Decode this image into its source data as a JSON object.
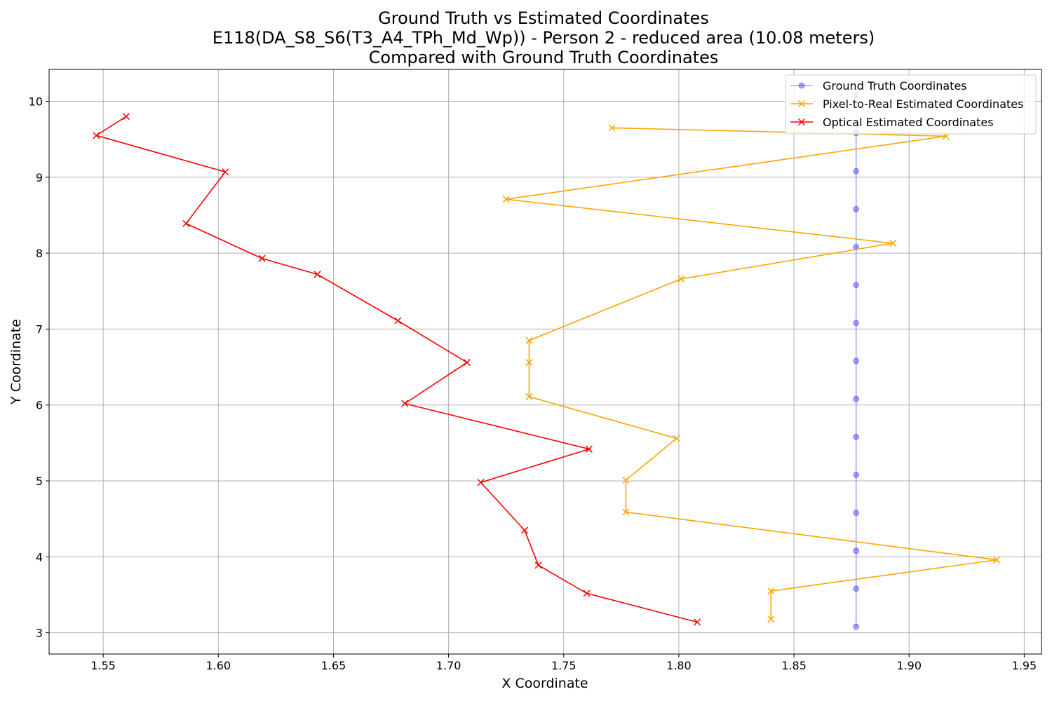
{
  "chart_data": {
    "type": "line",
    "title_lines": [
      "Ground Truth vs Estimated Coordinates",
      "E118(DA_S8_S6(T3_A4_TPh_Md_Wp)) - Person 2 - reduced area (10.08 meters)",
      "Compared with Ground Truth Coordinates"
    ],
    "xlabel": "X Coordinate",
    "ylabel": "Y Coordinate",
    "xlim": [
      1.5265,
      1.9575
    ],
    "ylim": [
      2.72,
      10.42
    ],
    "xticks": [
      1.55,
      1.6,
      1.65,
      1.7,
      1.75,
      1.8,
      1.85,
      1.9,
      1.95
    ],
    "xtick_labels": [
      "1.55",
      "1.60",
      "1.65",
      "1.70",
      "1.75",
      "1.80",
      "1.85",
      "1.90",
      "1.95"
    ],
    "yticks": [
      3,
      4,
      5,
      6,
      7,
      8,
      9,
      10
    ],
    "ytick_labels": [
      "3",
      "4",
      "5",
      "6",
      "7",
      "8",
      "9",
      "10"
    ],
    "grid": true,
    "legend_position": "top-right",
    "series": [
      {
        "name": "Ground Truth Coordinates",
        "color": "#0000ff",
        "marker": "circle",
        "alpha": 0.35,
        "points": [
          [
            1.877,
            10.08
          ],
          [
            1.877,
            9.58
          ],
          [
            1.877,
            9.08
          ],
          [
            1.877,
            8.58
          ],
          [
            1.877,
            8.08
          ],
          [
            1.877,
            7.58
          ],
          [
            1.877,
            7.08
          ],
          [
            1.877,
            6.58
          ],
          [
            1.877,
            6.08
          ],
          [
            1.877,
            5.58
          ],
          [
            1.877,
            5.08
          ],
          [
            1.877,
            4.58
          ],
          [
            1.877,
            4.08
          ],
          [
            1.877,
            3.58
          ],
          [
            1.877,
            3.08
          ]
        ]
      },
      {
        "name": "Pixel-to-Real Estimated Coordinates",
        "color": "#ffa500",
        "marker": "x",
        "alpha": 1,
        "points": [
          [
            1.771,
            9.65
          ],
          [
            1.916,
            9.54
          ],
          [
            1.725,
            8.71
          ],
          [
            1.893,
            8.13
          ],
          [
            1.801,
            7.66
          ],
          [
            1.735,
            6.85
          ],
          [
            1.735,
            6.56
          ],
          [
            1.735,
            6.11
          ],
          [
            1.799,
            5.56
          ],
          [
            1.777,
            5.01
          ],
          [
            1.777,
            4.59
          ],
          [
            1.938,
            3.96
          ],
          [
            1.84,
            3.55
          ],
          [
            1.84,
            3.18
          ]
        ]
      },
      {
        "name": "Optical Estimated Coordinates",
        "color": "#ff0000",
        "marker": "x",
        "alpha": 1,
        "points": [
          [
            1.56,
            9.8
          ],
          [
            1.547,
            9.55
          ],
          [
            1.603,
            9.07
          ],
          [
            1.586,
            8.39
          ],
          [
            1.619,
            7.93
          ],
          [
            1.643,
            7.72
          ],
          [
            1.678,
            7.11
          ],
          [
            1.708,
            6.56
          ],
          [
            1.681,
            6.02
          ],
          [
            1.761,
            5.42
          ],
          [
            1.714,
            4.98
          ],
          [
            1.733,
            4.35
          ],
          [
            1.739,
            3.89
          ],
          [
            1.76,
            3.52
          ],
          [
            1.808,
            3.14
          ]
        ]
      }
    ]
  }
}
